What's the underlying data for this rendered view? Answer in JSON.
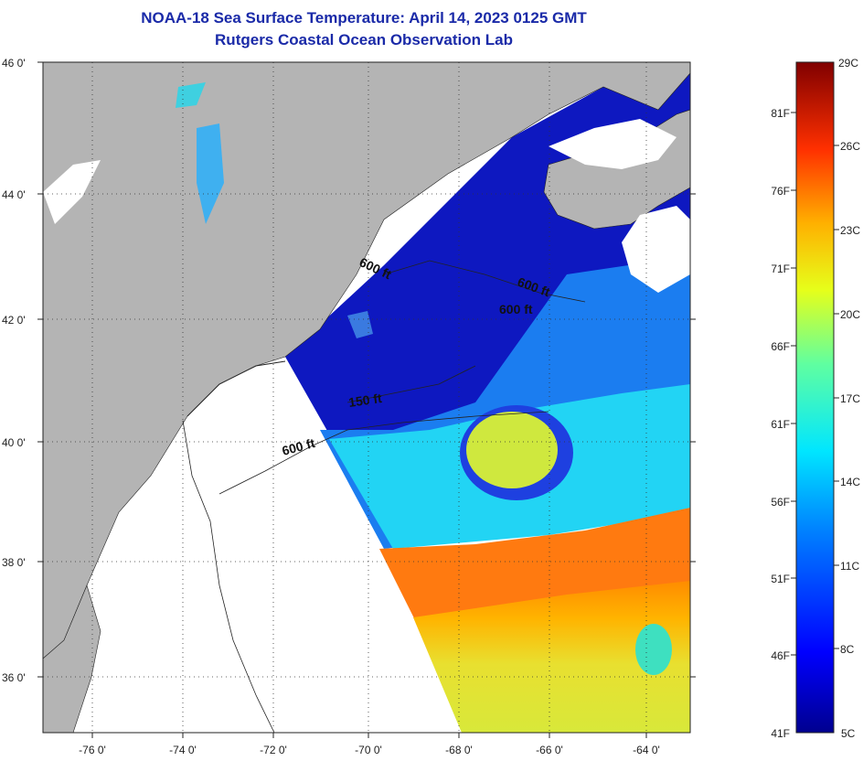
{
  "header": {
    "title": "NOAA-18 Sea Surface Temperature:  April 14, 2023 0125 GMT",
    "subtitle": "Rutgers Coastal Ocean Observation Lab"
  },
  "map": {
    "lat_labels": [
      "46 0'",
      "44 0'",
      "42 0'",
      "40 0'",
      "38 0'",
      "36 0'"
    ],
    "lon_labels": [
      "-76 0'",
      "-74 0'",
      "-72 0'",
      "-70 0'",
      "-68 0'",
      "-66 0'",
      "-64 0'"
    ],
    "isobaths": [
      "600 ft",
      "600 ft",
      "600 ft",
      "150 ft",
      "600 ft"
    ]
  },
  "colorbar": {
    "celsius": [
      "29C",
      "26C",
      "23C",
      "20C",
      "17C",
      "14C",
      "11C",
      "8C",
      "5C"
    ],
    "fahrenheit": [
      "81F",
      "76F",
      "71F",
      "66F",
      "61F",
      "56F",
      "51F",
      "46F",
      "41F"
    ]
  },
  "colors": {
    "land": "#b4b4b4",
    "no_data": "#ffffff",
    "cold": "#0a14b4",
    "warm": "#ff7a00",
    "title": "#1a2aa8"
  }
}
